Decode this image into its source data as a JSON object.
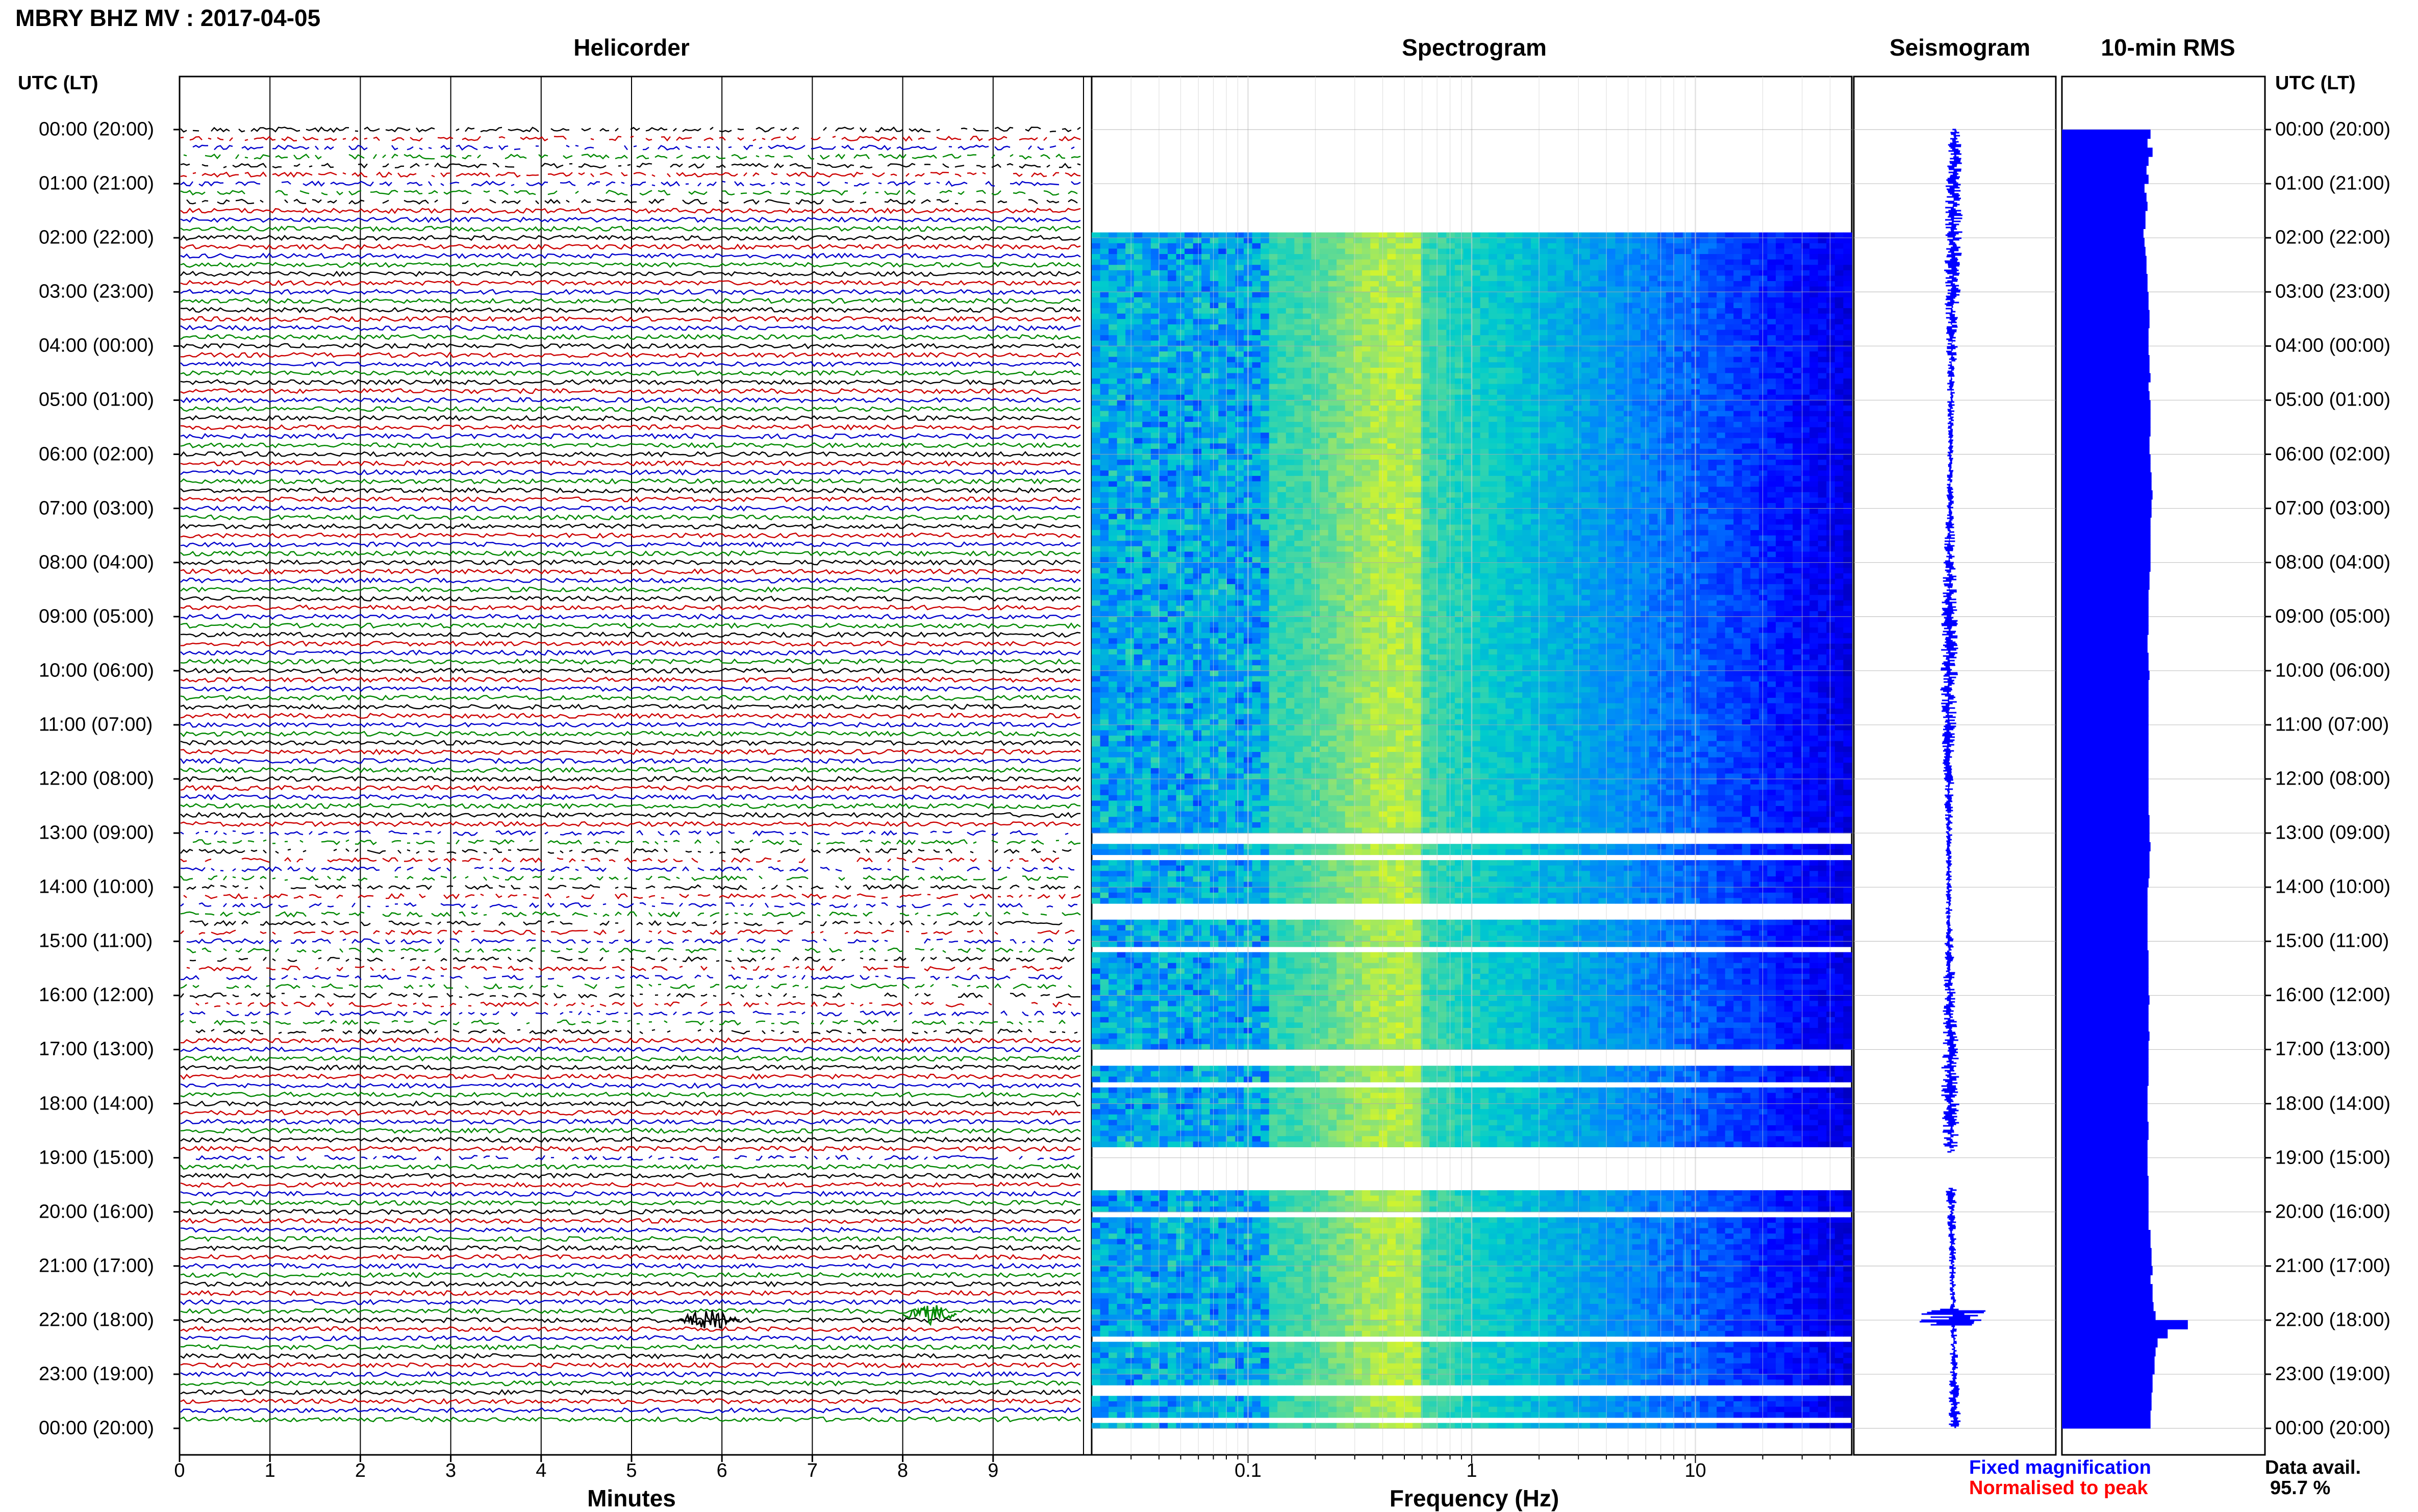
{
  "title": "MBRY BHZ MV : 2017-04-05",
  "panels": {
    "helicorder": "Helicorder",
    "spectrogram": "Spectrogram",
    "seismogram": "Seismogram",
    "rms": "10-min RMS"
  },
  "time_axis_header": "UTC (LT)",
  "time_labels": [
    "00:00 (20:00)",
    "01:00 (21:00)",
    "02:00 (22:00)",
    "03:00 (23:00)",
    "04:00 (00:00)",
    "05:00 (01:00)",
    "06:00 (02:00)",
    "07:00 (03:00)",
    "08:00 (04:00)",
    "09:00 (05:00)",
    "10:00 (06:00)",
    "11:00 (07:00)",
    "12:00 (08:00)",
    "13:00 (09:00)",
    "14:00 (10:00)",
    "15:00 (11:00)",
    "16:00 (12:00)",
    "17:00 (13:00)",
    "18:00 (14:00)",
    "19:00 (15:00)",
    "20:00 (16:00)",
    "21:00 (17:00)",
    "22:00 (18:00)",
    "23:00 (19:00)",
    "00:00 (20:00)"
  ],
  "helicorder_x": {
    "ticks": [
      "0",
      "1",
      "2",
      "3",
      "4",
      "5",
      "6",
      "7",
      "8",
      "9"
    ],
    "label": "Minutes"
  },
  "spectrogram_x": {
    "ticks": [
      "0.1",
      "1",
      "10"
    ],
    "label": "Frequency (Hz)"
  },
  "legend": {
    "fixed": "Fixed magnification",
    "normalised": "Normalised to peak",
    "availability_label": "Data avail.",
    "availability_value": "95.7 %"
  },
  "colors": {
    "trace_cycle": [
      "#000000",
      "#cc0000",
      "#0000cc",
      "#008800"
    ],
    "rms_bar": "#0000ff",
    "seismogram": "#0000ff",
    "fixed_text": "#0000ff",
    "normalised_text": "#ff0000",
    "spectrogram_ramp": [
      "#00008b",
      "#0000ff",
      "#0080ff",
      "#00cccc",
      "#80e080",
      "#ffff00"
    ]
  },
  "chart_data": [
    {
      "type": "line",
      "panel": "helicorder",
      "description_rows": 144,
      "x_range_minutes": [
        0,
        10
      ],
      "events": [
        {
          "hour": 22.0,
          "minute_start": 5.5,
          "minute_end": 6.2,
          "color": "black"
        },
        {
          "hour": 21.9,
          "minute_start": 8.0,
          "minute_end": 8.6,
          "color": "green"
        }
      ],
      "gaps_hours": [
        [
          0.0,
          1.4
        ],
        [
          13.0,
          16.7
        ],
        [
          19.0,
          19.1
        ]
      ]
    },
    {
      "type": "heatmap",
      "panel": "spectrogram",
      "x_scale": "log",
      "xlim": [
        0.02,
        50
      ],
      "xticks": [
        0.1,
        1,
        10
      ],
      "y_range_hours": [
        0,
        24
      ],
      "dominant_band_hz": [
        0.15,
        0.5
      ],
      "missing_hours": [
        [
          0.0,
          1.9
        ],
        [
          13.0,
          13.2
        ],
        [
          13.4,
          13.5
        ],
        [
          14.3,
          14.6
        ],
        [
          15.1,
          15.2
        ],
        [
          17.0,
          17.25
        ],
        [
          17.6,
          17.7
        ],
        [
          18.85,
          19.55
        ],
        [
          20.0,
          20.1
        ],
        [
          22.3,
          22.35
        ],
        [
          23.25,
          23.35
        ],
        [
          23.85,
          23.9
        ]
      ]
    },
    {
      "type": "line",
      "panel": "seismogram",
      "y_range_hours": [
        0,
        24
      ],
      "event_hour": 21.95
    },
    {
      "type": "bar",
      "panel": "rms",
      "orientation": "horizontal",
      "interval_minutes": 10,
      "values": [
        0.88,
        0.85,
        0.9,
        0.86,
        0.84,
        0.86,
        0.82,
        0.84,
        0.85,
        0.83,
        0.83,
        0.81,
        0.82,
        0.83,
        0.84,
        0.84,
        0.85,
        0.85,
        0.86,
        0.86,
        0.87,
        0.87,
        0.86,
        0.86,
        0.86,
        0.87,
        0.87,
        0.88,
        0.86,
        0.87,
        0.88,
        0.88,
        0.88,
        0.88,
        0.87,
        0.87,
        0.88,
        0.88,
        0.89,
        0.89,
        0.9,
        0.89,
        0.89,
        0.88,
        0.88,
        0.88,
        0.88,
        0.88,
        0.88,
        0.87,
        0.87,
        0.86,
        0.86,
        0.86,
        0.86,
        0.86,
        0.85,
        0.85,
        0.86,
        0.86,
        0.87,
        0.86,
        0.86,
        0.86,
        0.86,
        0.86,
        0.86,
        0.86,
        0.86,
        0.86,
        0.86,
        0.86,
        0.86,
        0.86,
        0.86,
        0.86,
        0.87,
        0.87,
        0.87,
        0.88,
        0.87,
        0.87,
        0.87,
        0.86,
        0.85,
        0.85,
        0.85,
        0.85,
        0.85,
        0.85,
        0.85,
        0.86,
        0.86,
        0.86,
        0.86,
        0.86,
        0.87,
        0.86,
        0.86,
        0.86,
        0.87,
        0.86,
        0.86,
        0.86,
        0.86,
        0.86,
        0.85,
        0.85,
        0.85,
        0.85,
        0.86,
        0.86,
        0.85,
        0.85,
        0.85,
        0.85,
        0.86,
        0.86,
        0.86,
        0.86,
        0.86,
        0.86,
        0.88,
        0.88,
        0.89,
        0.89,
        0.9,
        0.88,
        0.9,
        0.9,
        0.91,
        0.93,
        1.25,
        1.05,
        0.95,
        0.93,
        0.92,
        0.92,
        0.9,
        0.9,
        0.89,
        0.89,
        0.88,
        0.88
      ]
    }
  ]
}
